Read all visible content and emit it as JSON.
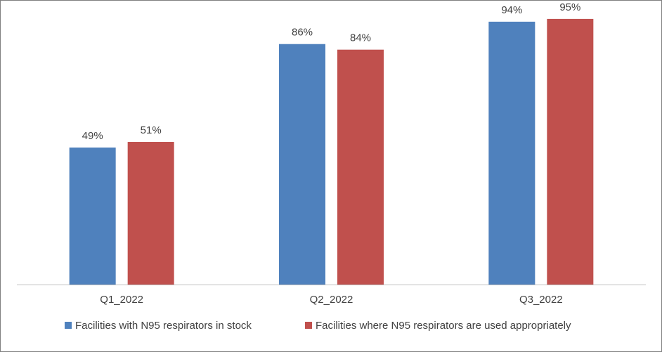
{
  "chart_data": {
    "type": "bar",
    "categories": [
      "Q1_2022",
      "Q2_2022",
      "Q3_2022"
    ],
    "series": [
      {
        "name": "Facilities with N95 respirators in stock",
        "values": [
          49,
          86,
          94
        ],
        "labels": [
          "49%",
          "86%",
          "94%"
        ],
        "color": "#4f81bd"
      },
      {
        "name": "Facilities where N95 respirators are used appropriately",
        "values": [
          51,
          84,
          95
        ],
        "labels": [
          "51%",
          "84%",
          "95%"
        ],
        "color": "#c0504d"
      }
    ],
    "ylim": [
      0,
      100
    ],
    "grid": false,
    "legend_position": "bottom",
    "axis_color": "#bfbfbf"
  }
}
